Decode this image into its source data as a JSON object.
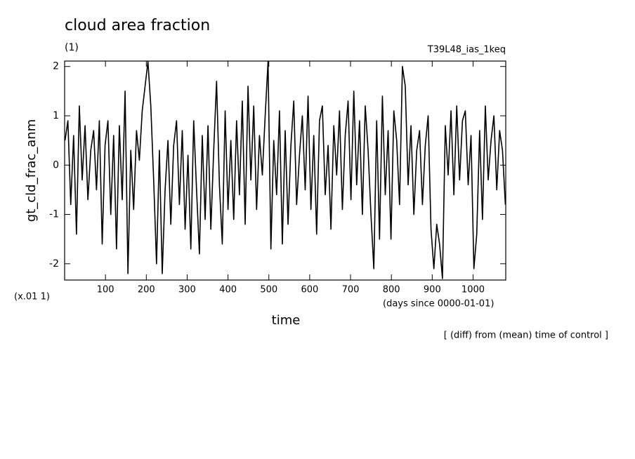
{
  "chart_data": {
    "type": "line",
    "title": "cloud area fraction",
    "subtitle": "(1)",
    "experiment": "T39L48_ias_1keq",
    "y_label": "gt_cld_frac_anm",
    "y_scale_label": "(x.01 1)",
    "x_label": "time",
    "x_units": "(days since 0000-01-01)",
    "annotation": "[ (diff) from (mean) time of control ]",
    "xlim": [
      0,
      1080
    ],
    "xticks": [
      100,
      200,
      300,
      400,
      500,
      600,
      700,
      800,
      900,
      1000
    ],
    "ylim": [
      -2.33,
      2.11
    ],
    "yticks": [
      -2,
      -1,
      0,
      1,
      2
    ],
    "x": [
      1,
      8,
      15,
      22,
      29,
      36,
      43,
      50,
      57,
      64,
      71,
      78,
      85,
      92,
      99,
      106,
      113,
      120,
      127,
      134,
      141,
      148,
      155,
      162,
      169,
      176,
      183,
      190,
      197,
      204,
      211,
      218,
      225,
      232,
      239,
      246,
      253,
      260,
      267,
      274,
      281,
      288,
      295,
      302,
      309,
      316,
      323,
      330,
      337,
      344,
      351,
      358,
      365,
      372,
      379,
      386,
      393,
      400,
      407,
      414,
      421,
      428,
      435,
      442,
      449,
      456,
      463,
      470,
      477,
      484,
      491,
      498,
      505,
      512,
      519,
      526,
      533,
      540,
      547,
      554,
      561,
      568,
      575,
      582,
      589,
      596,
      603,
      610,
      617,
      624,
      631,
      638,
      645,
      652,
      659,
      666,
      673,
      680,
      687,
      694,
      701,
      708,
      715,
      722,
      729,
      736,
      743,
      750,
      757,
      764,
      771,
      778,
      785,
      792,
      799,
      806,
      813,
      820,
      827,
      834,
      841,
      848,
      855,
      862,
      869,
      876,
      883,
      890,
      897,
      904,
      911,
      918,
      925,
      932,
      939,
      946,
      953,
      960,
      967,
      974,
      981,
      988,
      995,
      1002,
      1009,
      1016,
      1023,
      1030,
      1037,
      1044,
      1051,
      1058,
      1065,
      1072,
      1079
    ],
    "series": [
      {
        "color": "#000000",
        "values": [
          0.5,
          0.9,
          -0.8,
          0.6,
          -1.4,
          1.2,
          -0.3,
          0.8,
          -0.7,
          0.3,
          0.7,
          -0.5,
          0.9,
          -1.6,
          0.4,
          0.9,
          -1.0,
          0.6,
          -1.7,
          0.8,
          -0.7,
          1.5,
          -2.2,
          0.3,
          -0.9,
          0.7,
          0.1,
          1.1,
          1.6,
          2.1,
          1.2,
          -0.3,
          -2.0,
          0.3,
          -2.2,
          -0.5,
          0.5,
          -1.2,
          0.4,
          0.9,
          -0.8,
          0.7,
          -1.3,
          0.2,
          -1.7,
          0.9,
          -0.5,
          -1.8,
          0.6,
          -1.1,
          0.8,
          -1.3,
          0.3,
          1.7,
          -0.4,
          -1.6,
          1.1,
          -0.9,
          0.5,
          -1.1,
          0.9,
          -0.6,
          1.3,
          -1.2,
          1.6,
          -0.3,
          1.2,
          -0.9,
          0.6,
          -0.2,
          1.0,
          2.1,
          -1.7,
          0.5,
          -0.6,
          1.1,
          -1.6,
          0.7,
          -1.2,
          0.4,
          1.3,
          -0.8,
          0.2,
          1.0,
          -0.5,
          1.4,
          -0.9,
          0.6,
          -1.4,
          0.9,
          1.2,
          -0.6,
          0.4,
          -1.3,
          0.8,
          -0.2,
          1.1,
          -0.9,
          0.6,
          1.3,
          -0.7,
          1.5,
          -0.4,
          0.9,
          -1.0,
          1.2,
          0.3,
          -1.0,
          -2.1,
          0.9,
          -1.5,
          1.4,
          -0.6,
          0.7,
          -1.5,
          1.1,
          0.5,
          -0.8,
          2.0,
          1.6,
          -0.4,
          0.8,
          -1.0,
          0.3,
          0.7,
          -0.8,
          0.4,
          1.0,
          -1.3,
          -2.1,
          -1.2,
          -1.6,
          -2.3,
          0.8,
          -0.2,
          1.1,
          -0.6,
          1.2,
          -0.3,
          0.9,
          1.1,
          -0.4,
          0.6,
          -2.1,
          -1.4,
          0.7,
          -1.1,
          1.2,
          -0.3,
          0.5,
          1.0,
          -0.5,
          0.7,
          0.3,
          -0.8
        ]
      }
    ]
  }
}
